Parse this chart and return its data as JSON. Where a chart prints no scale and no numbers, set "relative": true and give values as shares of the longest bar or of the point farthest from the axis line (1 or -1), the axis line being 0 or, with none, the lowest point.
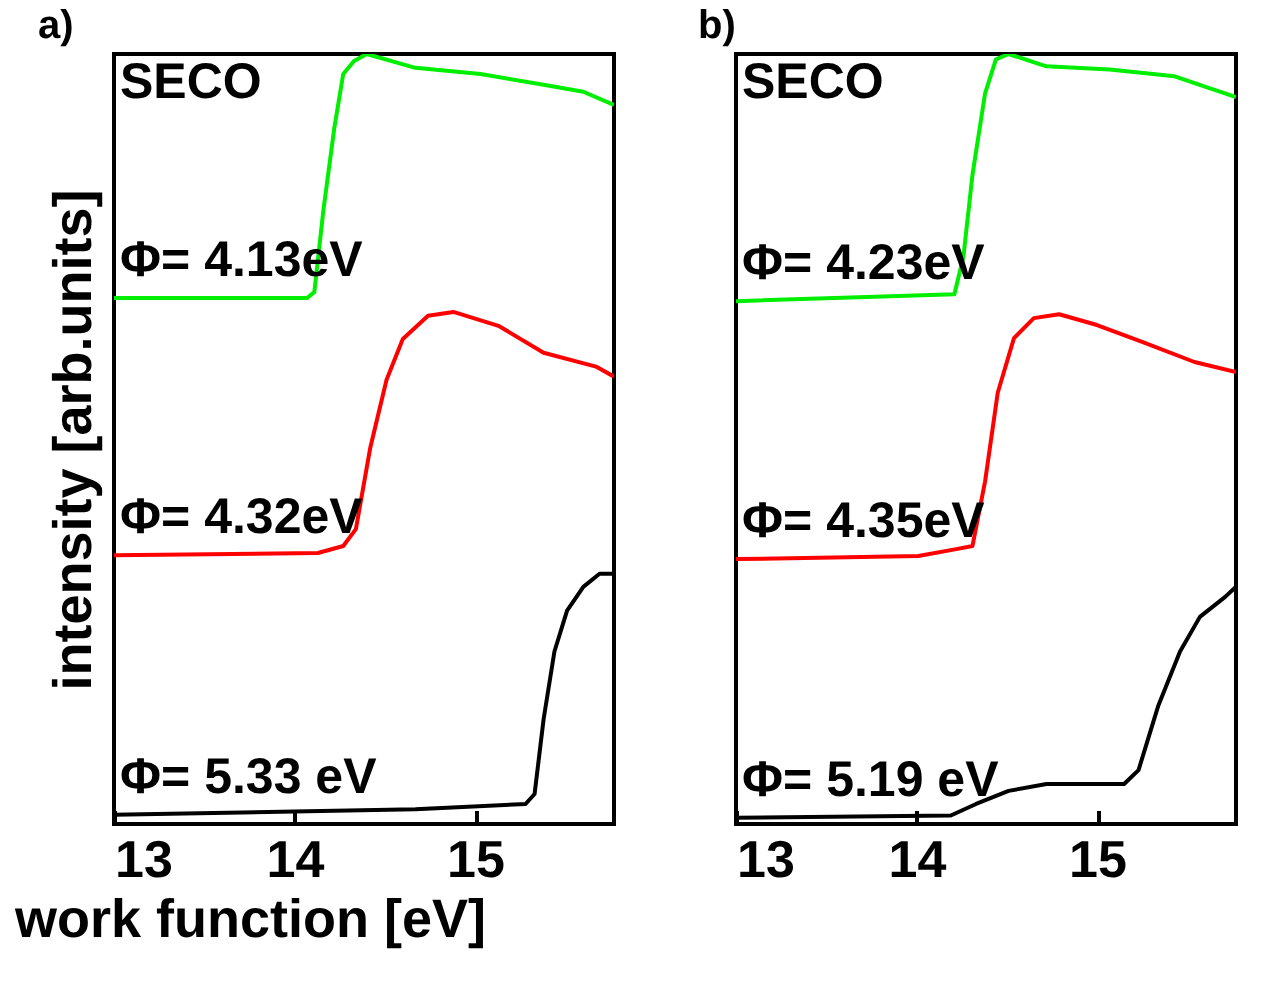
{
  "chart_data": [
    {
      "type": "line",
      "title": "a)",
      "xlabel": "work function [eV]",
      "ylabel": "intensity [arb.units]",
      "relative": true,
      "xlim": [
        13,
        15.77
      ],
      "xticks": [
        13,
        14,
        15
      ],
      "annotations": [
        "SECO",
        "Φ=  4.13eV",
        "Φ=  4.32eV",
        "Φ= 5.33 eV"
      ],
      "series": [
        {
          "color": "#00ee00",
          "x": [
            13.0,
            14.07,
            14.11,
            14.16,
            14.22,
            14.27,
            14.33,
            14.4,
            14.67,
            15.03,
            15.38,
            15.6,
            15.77
          ],
          "values": [
            0.683,
            0.683,
            0.691,
            0.797,
            0.903,
            0.974,
            0.991,
            1.0,
            0.982,
            0.974,
            0.96,
            0.951,
            0.934
          ]
        },
        {
          "color": "#ff0000",
          "x": [
            13.0,
            14.13,
            14.27,
            14.34,
            14.42,
            14.51,
            14.6,
            14.74,
            14.88,
            15.13,
            15.38,
            15.67,
            15.77
          ],
          "values": [
            0.349,
            0.352,
            0.361,
            0.383,
            0.489,
            0.577,
            0.63,
            0.66,
            0.665,
            0.647,
            0.612,
            0.594,
            0.581
          ]
        },
        {
          "color": "#000000",
          "x": [
            13.0,
            14.67,
            15.28,
            15.33,
            15.38,
            15.44,
            15.51,
            15.6,
            15.69,
            15.77
          ],
          "values": [
            0.012,
            0.019,
            0.026,
            0.039,
            0.136,
            0.224,
            0.277,
            0.308,
            0.325,
            0.325
          ]
        }
      ]
    },
    {
      "type": "line",
      "title": "b)",
      "relative": true,
      "xlim": [
        13,
        15.77
      ],
      "xticks": [
        13,
        14,
        15
      ],
      "annotations": [
        "SECO",
        "Φ=  4.23eV",
        "Φ=  4.35eV",
        "Φ= 5.19 eV"
      ],
      "series": [
        {
          "color": "#00ee00",
          "x": [
            13.0,
            14.21,
            14.26,
            14.31,
            14.38,
            14.44,
            14.51,
            14.72,
            15.07,
            15.43,
            15.77
          ],
          "values": [
            0.679,
            0.688,
            0.737,
            0.843,
            0.949,
            0.993,
            1.0,
            0.984,
            0.98,
            0.971,
            0.944
          ]
        },
        {
          "color": "#ff0000",
          "x": [
            13.0,
            14.01,
            14.22,
            14.31,
            14.38,
            14.45,
            14.54,
            14.65,
            14.79,
            15.0,
            15.25,
            15.54,
            15.77
          ],
          "values": [
            0.344,
            0.348,
            0.357,
            0.361,
            0.445,
            0.56,
            0.631,
            0.657,
            0.662,
            0.648,
            0.626,
            0.6,
            0.587
          ]
        },
        {
          "color": "#000000",
          "x": [
            13.0,
            14.19,
            14.33,
            14.51,
            14.72,
            15.15,
            15.23,
            15.34,
            15.46,
            15.57,
            15.71,
            15.77
          ],
          "values": [
            0.008,
            0.011,
            0.026,
            0.043,
            0.052,
            0.052,
            0.07,
            0.154,
            0.224,
            0.269,
            0.295,
            0.308
          ]
        }
      ]
    }
  ]
}
